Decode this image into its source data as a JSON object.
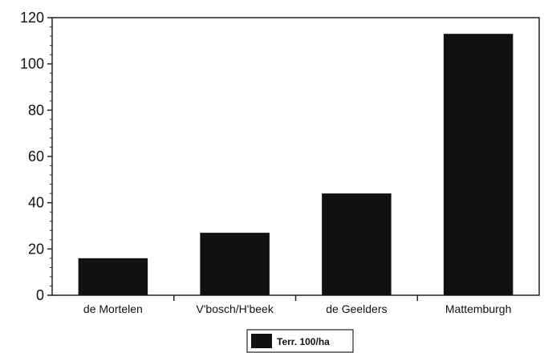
{
  "chart_data": {
    "type": "bar",
    "categories": [
      "de Mortelen",
      "V'bosch/H'beek",
      "de Geelders",
      "Mattemburgh"
    ],
    "series": [
      {
        "name": "Terr. 100/ha",
        "values": [
          16,
          27,
          44,
          113
        ]
      }
    ],
    "ylim": [
      0,
      120
    ],
    "yticks": [
      0,
      20,
      40,
      60,
      80,
      100,
      120
    ],
    "grid": false,
    "legend_position": "bottom-center",
    "bar_color": "#111111"
  }
}
